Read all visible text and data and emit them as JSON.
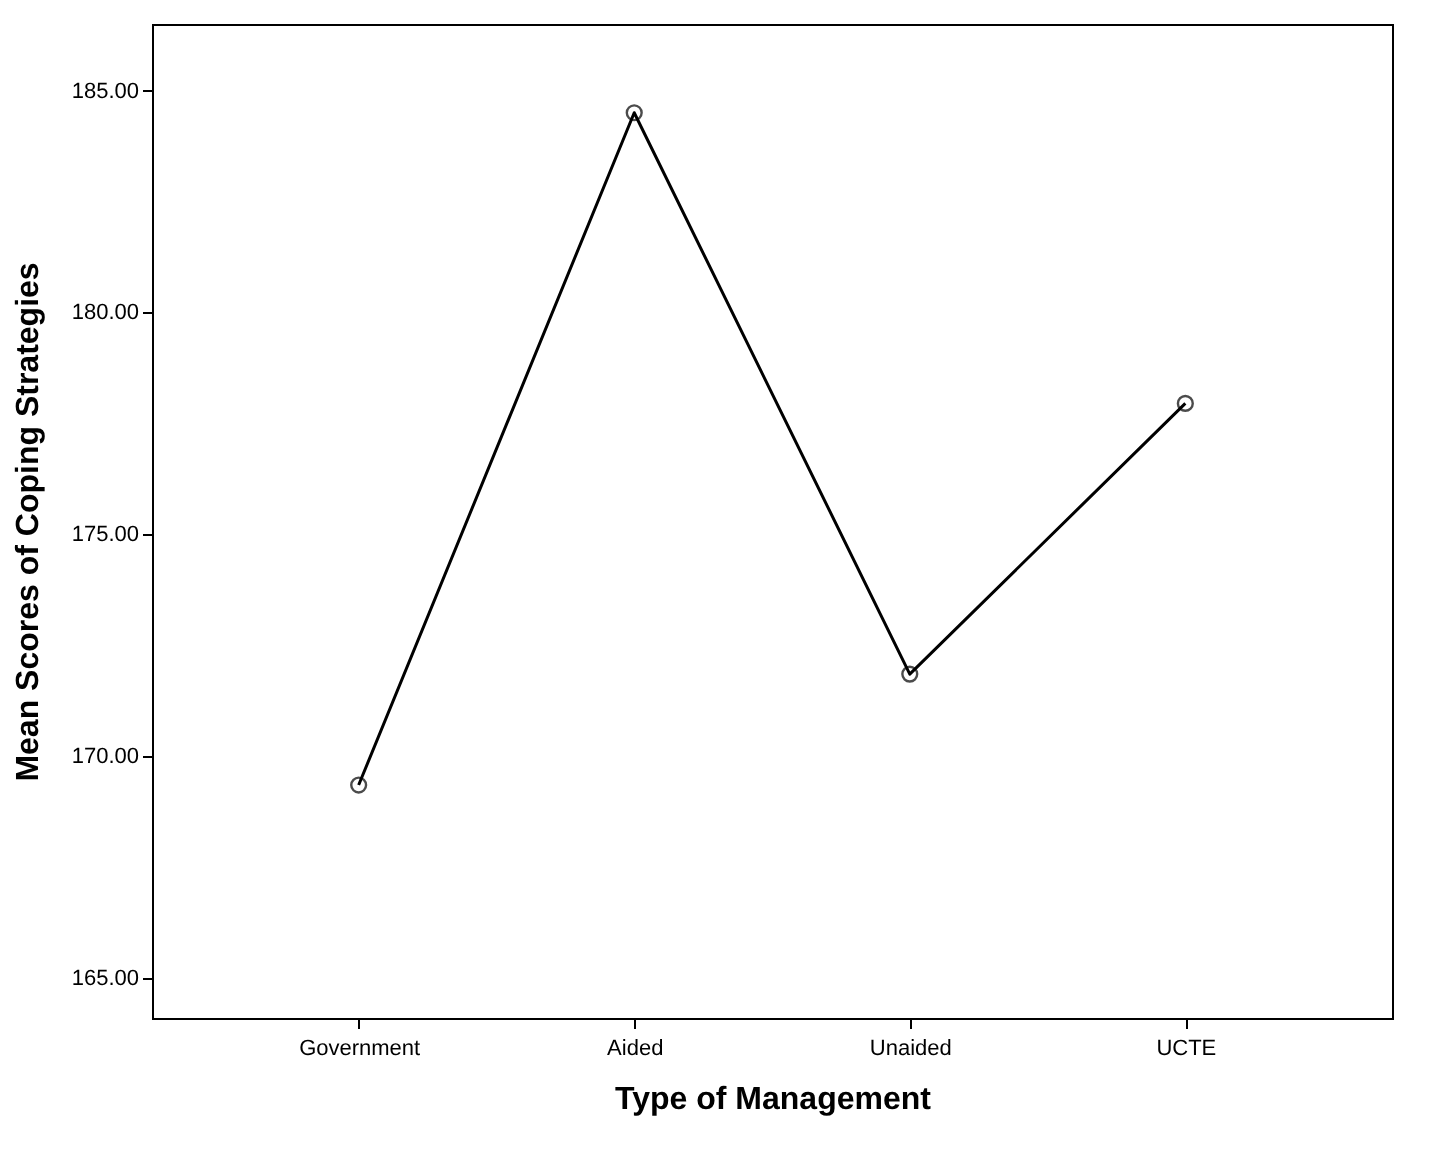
{
  "chart_data": {
    "type": "line",
    "xlabel": "Type of Management",
    "ylabel": "Mean Scores of Coping Strategies",
    "categories": [
      "Government",
      "Aided",
      "Unaided",
      "UCTE"
    ],
    "series": [
      {
        "color": "#000000",
        "values": [
          169.35,
          184.5,
          171.85,
          177.95
        ]
      }
    ],
    "ylim": [
      164.1,
      186.5
    ],
    "yticks": [
      {
        "value": 165,
        "label": "165.00"
      },
      {
        "value": 170,
        "label": "170.00"
      },
      {
        "value": 175,
        "label": "175.00"
      },
      {
        "value": 180,
        "label": "180.00"
      },
      {
        "value": 185,
        "label": "185.00"
      }
    ],
    "grid": false,
    "marker": "circle",
    "line_style": "solid"
  }
}
